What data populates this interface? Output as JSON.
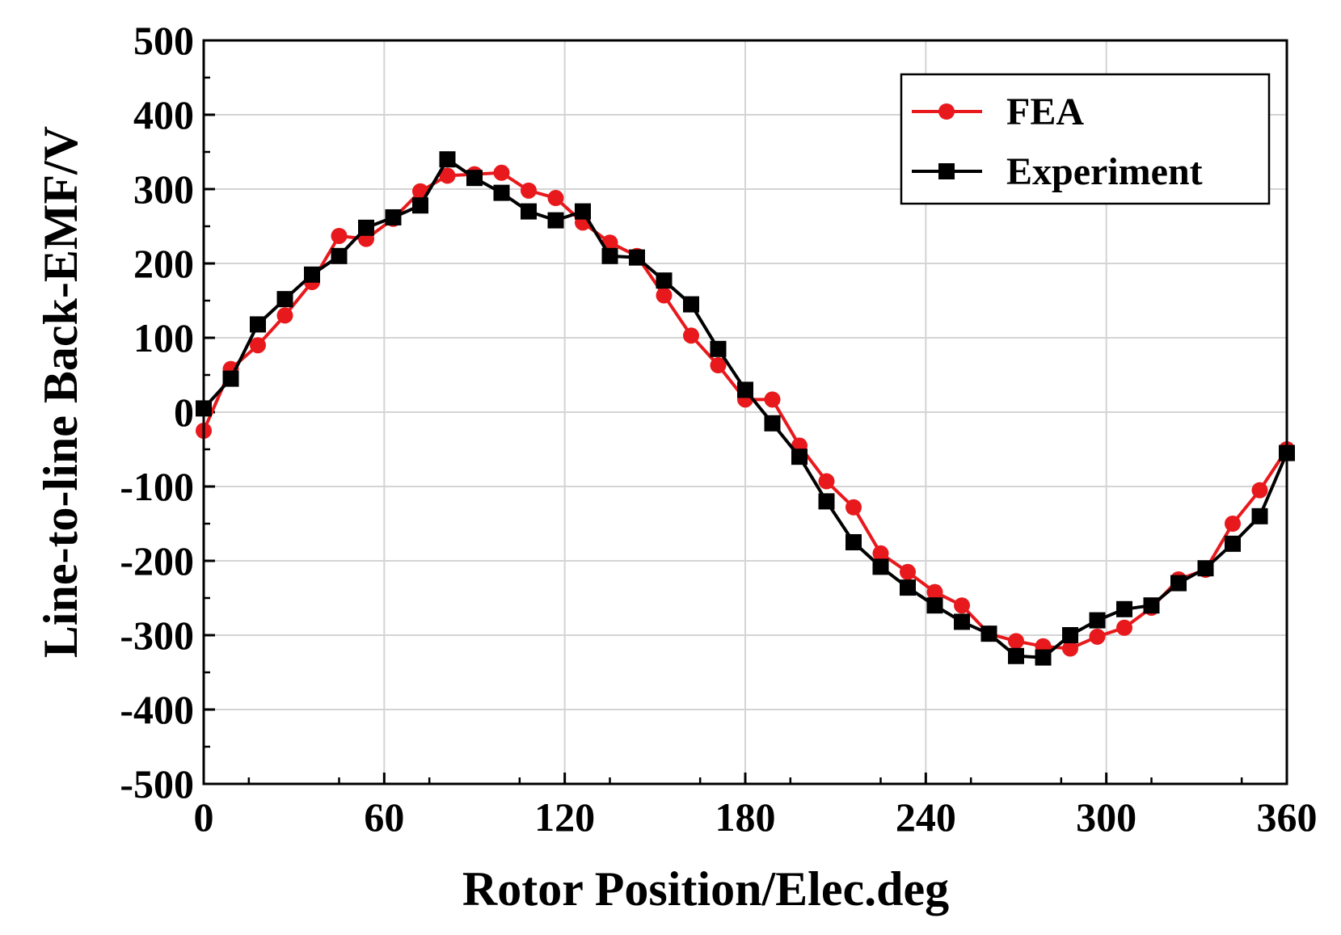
{
  "chart_data": {
    "type": "line",
    "title": "",
    "xlabel": "Rotor Position/Elec.deg",
    "ylabel": "Line-to-line Back-EMF/V",
    "xlim": [
      0,
      360
    ],
    "ylim": [
      -500,
      500
    ],
    "xticks": [
      0,
      60,
      120,
      180,
      240,
      300,
      360
    ],
    "yticks": [
      500,
      400,
      300,
      200,
      100,
      0,
      -100,
      -200,
      -300,
      -400,
      -500
    ],
    "xtick_labels": [
      "0",
      "60",
      "120",
      "180",
      "240",
      "300",
      "360"
    ],
    "ytick_labels": [
      "500",
      "400",
      "300",
      "200",
      "100",
      "0",
      "-100",
      "-200",
      "-300",
      "-400",
      "-500"
    ],
    "grid": true,
    "legend_position": "top-right",
    "series": [
      {
        "name": "FEA",
        "color": "#e8191c",
        "marker": "circle",
        "x": [
          0,
          9,
          18,
          27,
          36,
          45,
          54,
          63,
          72,
          81,
          90,
          99,
          108,
          117,
          126,
          135,
          144,
          153,
          162,
          171,
          180,
          189,
          198,
          207,
          216,
          225,
          234,
          243,
          252,
          261,
          270,
          279,
          288,
          297,
          306,
          315,
          324,
          333,
          342,
          351,
          360
        ],
        "y": [
          -25,
          58,
          90,
          130,
          175,
          237,
          233,
          260,
          297,
          318,
          320,
          322,
          298,
          288,
          255,
          228,
          210,
          157,
          103,
          63,
          17,
          17,
          -45,
          -93,
          -128,
          -190,
          -215,
          -242,
          -260,
          -298,
          -308,
          -315,
          -318,
          -302,
          -290,
          -263,
          -225,
          -212,
          -150,
          -105,
          -50
        ]
      },
      {
        "name": "Experiment",
        "color": "#000000",
        "marker": "square",
        "x": [
          0,
          9,
          18,
          27,
          36,
          45,
          54,
          63,
          72,
          81,
          90,
          99,
          108,
          117,
          126,
          135,
          144,
          153,
          162,
          171,
          180,
          189,
          198,
          207,
          216,
          225,
          234,
          243,
          252,
          261,
          270,
          279,
          288,
          297,
          306,
          315,
          324,
          333,
          342,
          351,
          360
        ],
        "y": [
          5,
          45,
          118,
          152,
          185,
          210,
          248,
          262,
          278,
          340,
          315,
          295,
          270,
          258,
          270,
          210,
          208,
          177,
          145,
          85,
          30,
          -15,
          -60,
          -120,
          -175,
          -208,
          -236,
          -260,
          -282,
          -298,
          -328,
          -330,
          -300,
          -280,
          -265,
          -260,
          -230,
          -210,
          -177,
          -140,
          -55
        ]
      }
    ]
  }
}
